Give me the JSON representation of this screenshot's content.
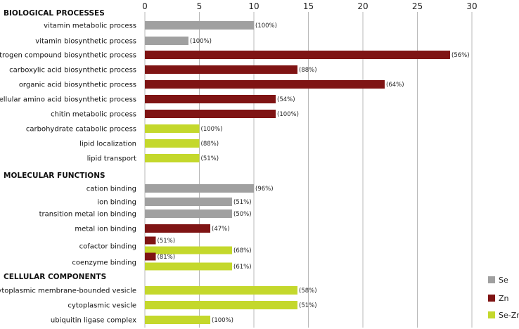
{
  "colors": {
    "Se": "#a0a0a0",
    "Zn": "#7f1414",
    "Se-Zn": "#c4d82c"
  },
  "chart_data": {
    "type": "bar",
    "orientation": "horizontal",
    "xlim": [
      0,
      30
    ],
    "xticks": [
      0,
      5,
      10,
      15,
      20,
      25,
      30
    ],
    "grid": true,
    "legend": {
      "position": "bottom-right",
      "entries": [
        "Se",
        "Zn",
        "Se-Zn"
      ]
    },
    "sections": [
      {
        "title": "BIOLOGICAL PROCESSES",
        "categories": [
          {
            "label": "vitamin metabolic process",
            "bars": [
              {
                "series": "Se",
                "value": 10,
                "pct": "(100%)"
              }
            ]
          },
          {
            "label": "vitamin biosynthetic process",
            "bars": [
              {
                "series": "Se",
                "value": 4,
                "pct": "(100%)"
              }
            ]
          },
          {
            "label": "nitrogen compound biosynthetic process",
            "bars": [
              {
                "series": "Zn",
                "value": 28,
                "pct": "(56%)"
              }
            ]
          },
          {
            "label": "carboxylic acid biosynthetic process",
            "bars": [
              {
                "series": "Zn",
                "value": 14,
                "pct": "(88%)"
              }
            ]
          },
          {
            "label": "organic acid biosynthetic process",
            "bars": [
              {
                "series": "Zn",
                "value": 22,
                "pct": "(64%)"
              }
            ]
          },
          {
            "label": "cellular amino acid biosynthetic process",
            "bars": [
              {
                "series": "Zn",
                "value": 12,
                "pct": "(54%)"
              }
            ]
          },
          {
            "label": "chitin metabolic process",
            "bars": [
              {
                "series": "Zn",
                "value": 12,
                "pct": "(100%)"
              }
            ]
          },
          {
            "label": "carbohydrate catabolic process",
            "bars": [
              {
                "series": "Se-Zn",
                "value": 5,
                "pct": "(100%)"
              }
            ]
          },
          {
            "label": "lipid localization",
            "bars": [
              {
                "series": "Se-Zn",
                "value": 5,
                "pct": "(88%)"
              }
            ]
          },
          {
            "label": "lipid transport",
            "bars": [
              {
                "series": "Se-Zn",
                "value": 5,
                "pct": "(51%)"
              }
            ]
          }
        ]
      },
      {
        "title": "MOLECULAR FUNCTIONS",
        "categories": [
          {
            "label": "cation binding",
            "bars": [
              {
                "series": "Se",
                "value": 10,
                "pct": "(96%)"
              }
            ]
          },
          {
            "label": "ion binding",
            "bars": [
              {
                "series": "Se",
                "value": 8,
                "pct": "(51%)"
              }
            ]
          },
          {
            "label": "transition metal ion binding",
            "bars": [
              {
                "series": "Se",
                "value": 8,
                "pct": "(50%)"
              }
            ]
          },
          {
            "label": "metal ion binding",
            "bars": [
              {
                "series": "Zn",
                "value": 6,
                "pct": "(47%)"
              }
            ]
          },
          {
            "label": "cofactor binding",
            "bars": [
              {
                "series": "Zn",
                "value": 1,
                "pct": "(51%)"
              },
              {
                "series": "Se-Zn",
                "value": 8,
                "pct": "(68%)"
              }
            ]
          },
          {
            "label": "coenzyme binding",
            "bars": [
              {
                "series": "Zn",
                "value": 1,
                "pct": "(81%)"
              },
              {
                "series": "Se-Zn",
                "value": 8,
                "pct": "(61%)"
              }
            ]
          }
        ]
      },
      {
        "title": "CELLULAR COMPONENTS",
        "categories": [
          {
            "label": "cytoplasmic membrane-bounded vesicle",
            "bars": [
              {
                "series": "Se-Zn",
                "value": 14,
                "pct": "(58%)"
              }
            ]
          },
          {
            "label": "cytoplasmic vesicle",
            "bars": [
              {
                "series": "Se-Zn",
                "value": 14,
                "pct": "(51%)"
              }
            ]
          },
          {
            "label": "ubiquitin ligase complex",
            "bars": [
              {
                "series": "Se-Zn",
                "value": 6,
                "pct": "(100%)"
              }
            ]
          }
        ]
      }
    ]
  }
}
